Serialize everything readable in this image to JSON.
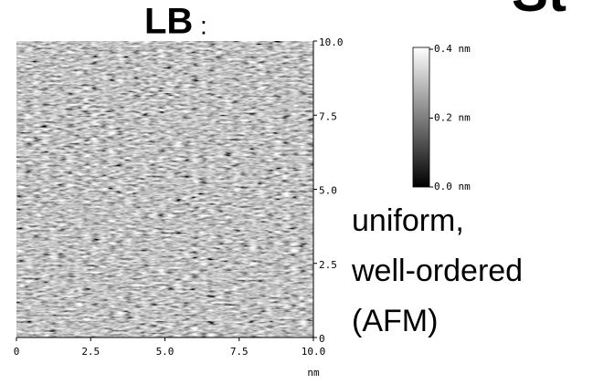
{
  "header": {
    "title": "LB",
    "colon": ":",
    "cut_title": "St"
  },
  "afm_image": {
    "bottom_axis": {
      "ticks": [
        "0",
        "2.5",
        "5.0",
        "7.5",
        "10.0"
      ],
      "unit": "nm"
    },
    "right_axis": {
      "ticks": [
        "10.0",
        "7.5",
        "5.0",
        "2.5",
        "0"
      ]
    },
    "colorbar": {
      "labels": [
        "0.4 nm",
        "0.2 nm",
        "0.0 nm"
      ]
    }
  },
  "description": {
    "lines": [
      "uniform,",
      "well-ordered",
      "(AFM)"
    ]
  }
}
